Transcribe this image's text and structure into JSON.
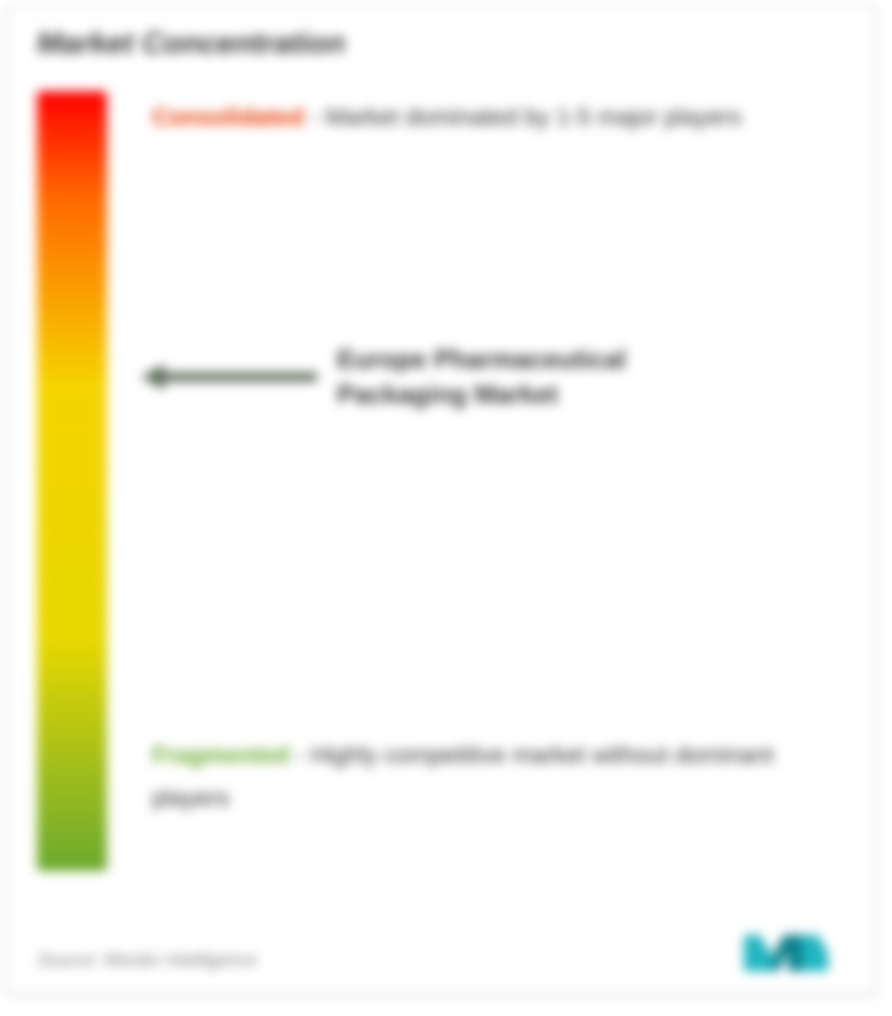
{
  "title": "Market Concentration",
  "gradient": {
    "top_color": "#ff0000",
    "mid1_color": "#ff6a00",
    "mid2_color": "#f5d400",
    "mid3_color": "#e8d800",
    "bottom_color": "#6aa92f"
  },
  "consolidated": {
    "label": "Consolidated",
    "label_color": "#e63900",
    "desc": "- Market dominated by 1-5 major players"
  },
  "market": {
    "arrow_color": "#5a6a58",
    "arrow_width": 175,
    "arrow_height": 24,
    "position_pct": 36,
    "label": "Europe Pharmaceutical Packaging Market"
  },
  "fragmented": {
    "label": "Fragmented",
    "label_color": "#6aa92f",
    "desc": "- Highly competitive market without dominant players",
    "position_pct": 85
  },
  "footer": "Source: Mordor Intelligence",
  "logo": {
    "fill1": "#1fb6c1",
    "fill2": "#0a7f8a",
    "width": 90,
    "height": 48
  },
  "layout": {
    "container_border": "#d0d0d0",
    "text_color": "#333333",
    "muted_color": "#7a7a7a",
    "bg": "#ffffff"
  }
}
